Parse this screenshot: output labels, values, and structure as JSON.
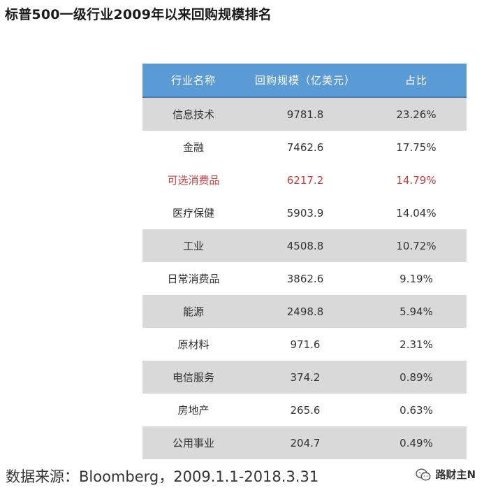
{
  "page_title": "标普500一级行业2009年以来回购规模排名",
  "source_note": "数据来源：Bloomberg，2009.1.1-2018.3.31",
  "watermark": {
    "icon": "wechat-icon",
    "text": "路财主N"
  },
  "colors": {
    "header_bg": "#5b9bd5",
    "stripe_bg": "#d9d9d9",
    "highlight_text": "#d43b3b"
  },
  "chart_data": {
    "type": "table",
    "title": "标普500一级行业2009年以来回购规模排名",
    "columns": [
      "行业名称",
      "回购规模（亿美元）",
      "占比"
    ],
    "highlighted_row": "可选消费品",
    "rows": [
      {
        "name": "信息技术",
        "value": "9781.8",
        "share": "23.26%"
      },
      {
        "name": "金融",
        "value": "7462.6",
        "share": "17.75%"
      },
      {
        "name": "可选消费品",
        "value": "6217.2",
        "share": "14.79%"
      },
      {
        "name": "医疗保健",
        "value": "5903.9",
        "share": "14.04%"
      },
      {
        "name": "工业",
        "value": "4508.8",
        "share": "10.72%"
      },
      {
        "name": "日常消费品",
        "value": "3862.6",
        "share": "9.19%"
      },
      {
        "name": "能源",
        "value": "2498.8",
        "share": "5.94%"
      },
      {
        "name": "原材料",
        "value": "971.6",
        "share": "2.31%"
      },
      {
        "name": "电信服务",
        "value": "374.2",
        "share": "0.89%"
      },
      {
        "name": "房地产",
        "value": "265.6",
        "share": "0.63%"
      },
      {
        "name": "公用事业",
        "value": "204.7",
        "share": "0.49%"
      }
    ]
  }
}
